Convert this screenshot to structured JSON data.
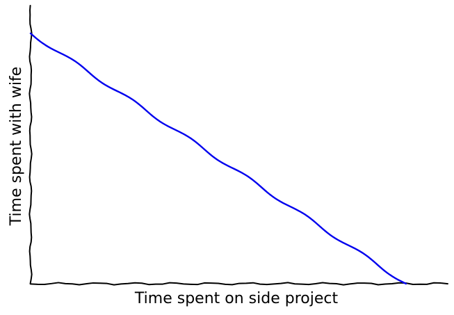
{
  "chart_data": {
    "type": "line",
    "style": "xkcd-hand-drawn",
    "title": "",
    "xlabel": "Time spent on side project",
    "ylabel": "Time spent with wife",
    "x_ticks": "none",
    "y_ticks": "none",
    "grid": false,
    "legend": "none",
    "xlim": [
      0,
      1
    ],
    "ylim": [
      0,
      1
    ],
    "series": [
      {
        "color": "#0000ee",
        "x": [
          0,
          0.05,
          0.1,
          0.15,
          0.2,
          0.25,
          0.3,
          0.35,
          0.4,
          0.45,
          0.5,
          0.55,
          0.6,
          0.65,
          0.7,
          0.75,
          0.8,
          0.85,
          0.9
        ],
        "y": [
          0.9,
          0.85,
          0.8,
          0.75,
          0.7,
          0.65,
          0.6,
          0.55,
          0.5,
          0.45,
          0.4,
          0.35,
          0.3,
          0.25,
          0.2,
          0.15,
          0.1,
          0.05,
          0.0
        ]
      }
    ]
  }
}
